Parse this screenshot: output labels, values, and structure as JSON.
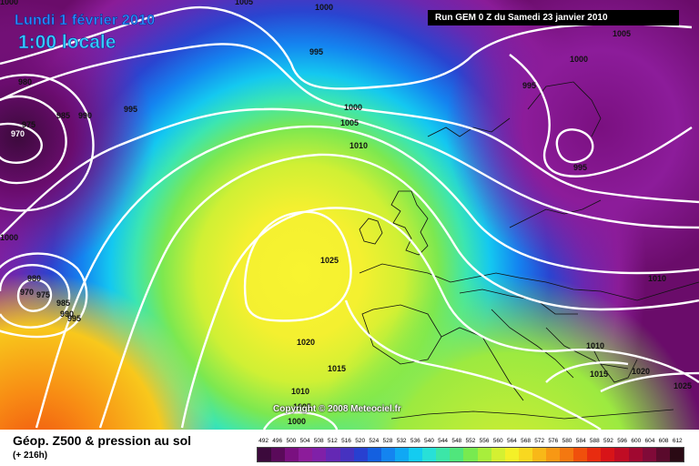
{
  "header": {
    "date_label": "Lundi 1 février 2010",
    "time_label": "1:00 locale",
    "run_label": "Run GEM 0 Z du Samedi 23 janvier 2010"
  },
  "footer": {
    "title": "Géop. Z500 & pression au sol",
    "subtitle": "(+ 216h)",
    "copyright": "Copyright © 2008 Meteociel.fr"
  },
  "scale": {
    "labels": [
      "492",
      "496",
      "500",
      "504",
      "508",
      "512",
      "516",
      "520",
      "524",
      "528",
      "532",
      "536",
      "540",
      "544",
      "548",
      "552",
      "556",
      "560",
      "564",
      "568",
      "572",
      "576",
      "580",
      "584",
      "588",
      "592",
      "596",
      "600",
      "604",
      "608",
      "612"
    ],
    "colors": [
      "#3c0a3c",
      "#5a0a5a",
      "#7a1080",
      "#8c1c9a",
      "#8020a8",
      "#6428b4",
      "#4632c0",
      "#2840d0",
      "#1460e0",
      "#1484f0",
      "#10a8f4",
      "#14ccf0",
      "#28e0d8",
      "#3ce6a8",
      "#50e67c",
      "#78ea50",
      "#a8ee3c",
      "#d4f032",
      "#f4f028",
      "#f8d820",
      "#f8b818",
      "#f89814",
      "#f47810",
      "#f0500c",
      "#e82c10",
      "#d81418",
      "#c00c24",
      "#a00830",
      "#800a38",
      "#5a0a2c",
      "#2a0a14"
    ]
  },
  "isobars": {
    "labels": [
      "1005",
      "1000",
      "995",
      "980",
      "975",
      "970",
      "985",
      "990",
      "995",
      "1000",
      "1005",
      "1010",
      "1000",
      "995",
      "995",
      "1005",
      "1000",
      "1025",
      "980",
      "970",
      "975",
      "985",
      "990",
      "995",
      "1020",
      "1015",
      "1010",
      "1005",
      "1000",
      "1010",
      "1010",
      "1015",
      "1020",
      "1025",
      "1000"
    ]
  }
}
